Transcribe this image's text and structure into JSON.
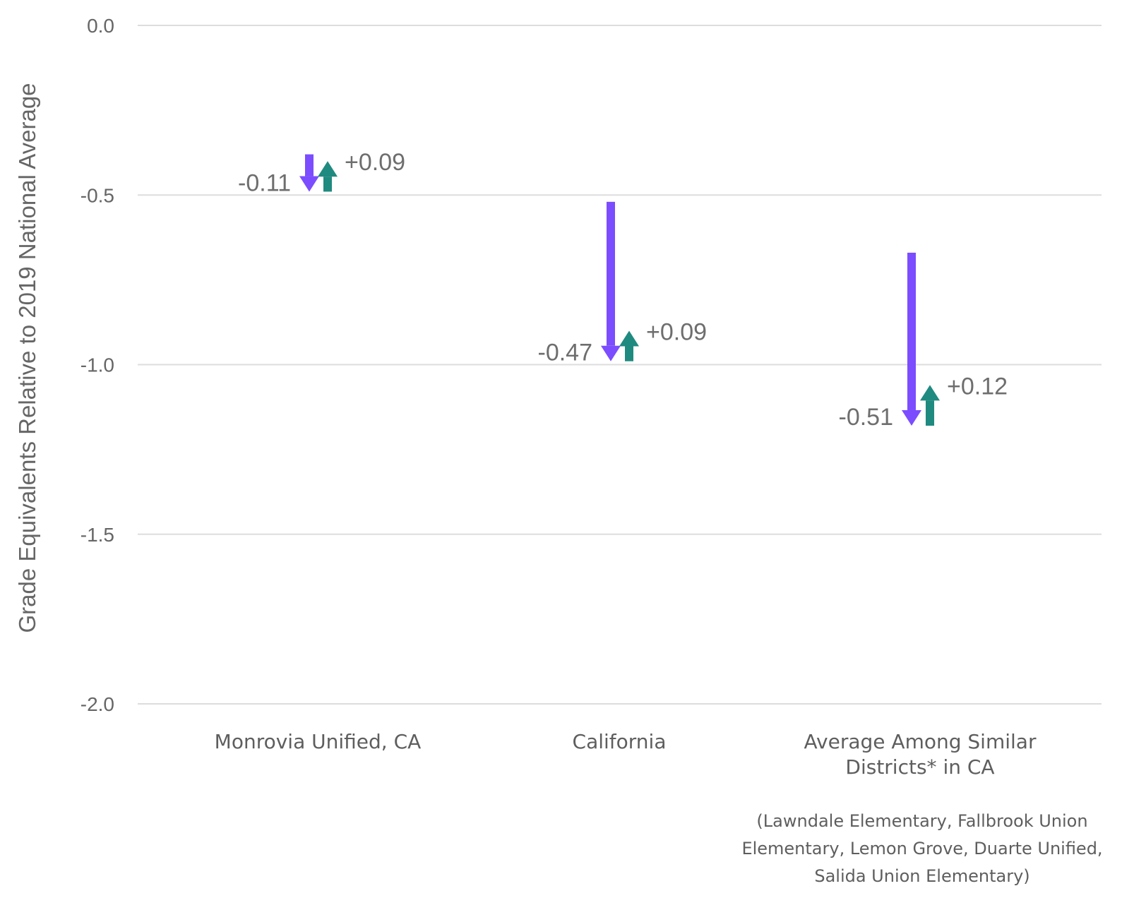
{
  "chart_data": {
    "type": "arrow-change",
    "ylabel": "Grade Equivalents Relative to 2019 National Average",
    "ylim": [
      -2.0,
      0.0
    ],
    "yticks": [
      {
        "value": 0.0,
        "label": "0.0"
      },
      {
        "value": -0.5,
        "label": "-0.5"
      },
      {
        "value": -1.0,
        "label": "-1.0"
      },
      {
        "value": -1.5,
        "label": "-1.5"
      },
      {
        "value": -2.0,
        "label": "-2.0"
      }
    ],
    "grid": true,
    "colors": {
      "decline": "#7b4dff",
      "recovery": "#1f8a80"
    },
    "categories": [
      {
        "label_lines": [
          "Monrovia Unified, CA"
        ],
        "start": -0.38,
        "decline": -0.11,
        "recovery": 0.09,
        "decline_label": "-0.11",
        "recovery_label": "+0.09"
      },
      {
        "label_lines": [
          "California"
        ],
        "start": -0.52,
        "decline": -0.47,
        "recovery": 0.09,
        "decline_label": "-0.47",
        "recovery_label": "+0.09"
      },
      {
        "label_lines": [
          "Average Among Similar",
          "Districts* in CA"
        ],
        "start": -0.67,
        "decline": -0.51,
        "recovery": 0.12,
        "decline_label": "-0.51",
        "recovery_label": "+0.12"
      }
    ],
    "footnote_lines": [
      "(Lawndale Elementary, Fallbrook Union",
      "Elementary, Lemon Grove, Duarte Unified,",
      "Salida Union Elementary)"
    ]
  }
}
